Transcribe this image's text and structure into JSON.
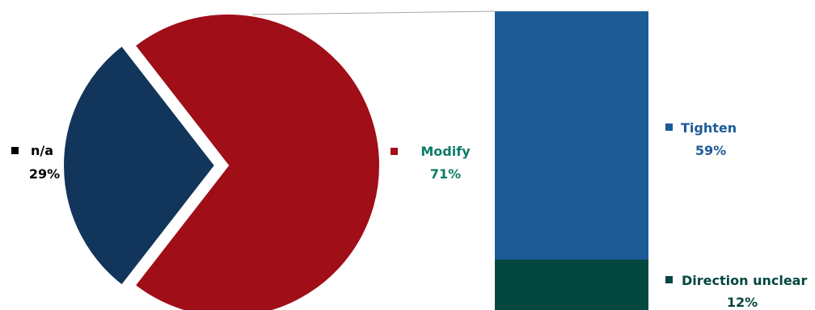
{
  "chart_data": [
    {
      "type": "pie",
      "categories": [
        "n/a",
        "Modify"
      ],
      "values": [
        29,
        71
      ],
      "value_labels": [
        "29%",
        "71%"
      ],
      "colors": {
        "n/a": "#12355b",
        "Modify": "#a00e18"
      },
      "label_colors": {
        "n/a": "#12355b",
        "Modify": "#0e7c66"
      },
      "exploded": "n/a"
    },
    {
      "type": "bar",
      "stacked": true,
      "breakdown_of": "Modify",
      "categories": [
        "Tighten",
        "Direction unclear"
      ],
      "values": [
        59,
        12
      ],
      "value_labels": [
        "59%",
        "12%"
      ],
      "colors": {
        "Tighten": "#1c5b96",
        "Direction unclear": "#03473e"
      },
      "label_colors": {
        "Tighten": "#1c5b96",
        "Direction unclear": "#03473e"
      }
    }
  ],
  "connector_color": "#a6a6a6"
}
